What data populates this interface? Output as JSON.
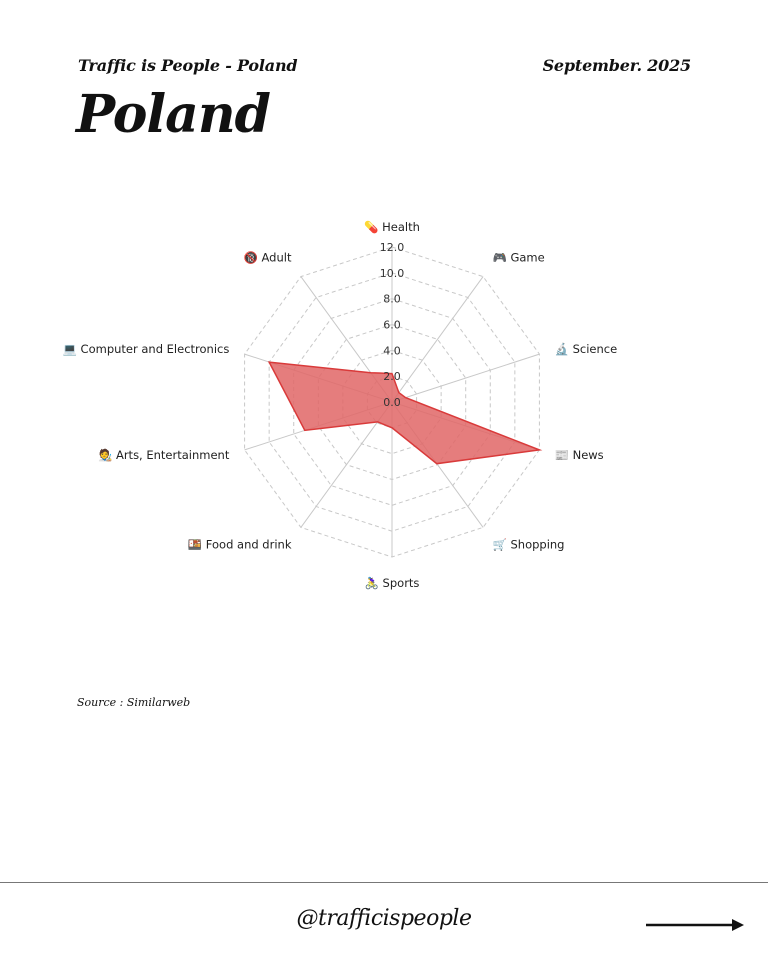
{
  "header": {
    "subtitle": "Traffic is People - Poland",
    "date": "September. 2025",
    "title": "Poland"
  },
  "footer": {
    "source": "Source : Similarweb",
    "handle": "@trafficispeople",
    "next_icon": "arrow-right-icon"
  },
  "colors": {
    "fill": "#e06666",
    "stroke": "#d93a3a",
    "grid": "#c8c8c8"
  },
  "chart_data": {
    "type": "radar",
    "title": "Poland",
    "categories": [
      "Health",
      "Game",
      "Science",
      "News",
      "Shopping",
      "Sports",
      "Food and drink",
      "Arts, Entertainment",
      "Computer and Electronics",
      "Adult"
    ],
    "category_icons": [
      "💊",
      "🎮",
      "🔬",
      "📰",
      "🛒",
      "🚴‍♀️",
      "🍱",
      "🧑‍🎨",
      "💻",
      "🔞"
    ],
    "series": [
      {
        "name": "Poland",
        "values": [
          2.2,
          0.9,
          1.1,
          12.0,
          5.9,
          2.0,
          1.9,
          7.1,
          10.0,
          2.8
        ]
      }
    ],
    "rlim": [
      0,
      12
    ],
    "ticks": [
      "0.0",
      "2.0",
      "4.0",
      "6.0",
      "8.0",
      "10.0",
      "12.0"
    ],
    "grid": true,
    "legend": false
  }
}
